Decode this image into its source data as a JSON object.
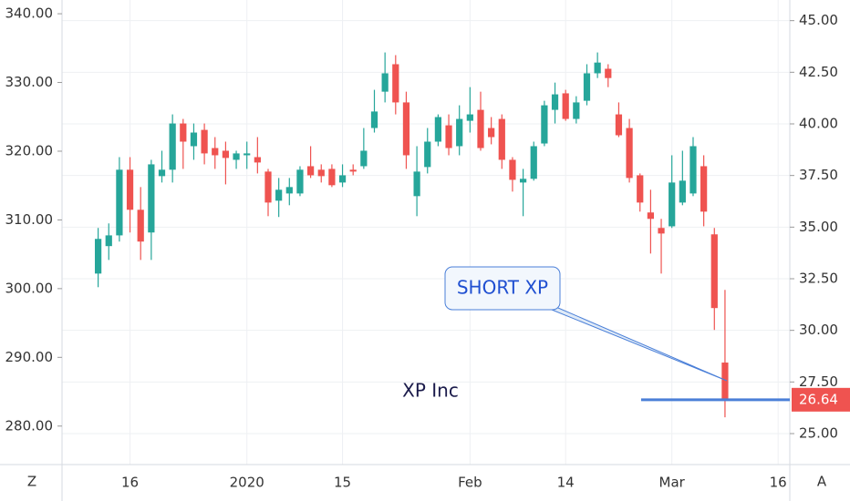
{
  "chart_data": {
    "type": "candlestick",
    "annotations": [
      "SHORT XP",
      "XP Inc"
    ],
    "x": [
      0,
      1,
      2,
      3,
      4,
      5,
      6,
      7,
      8,
      9,
      10,
      11,
      12,
      13,
      14,
      15,
      16,
      17,
      18,
      19,
      20,
      21,
      22,
      23,
      24,
      25,
      26,
      27,
      28,
      29,
      30,
      31,
      32,
      33,
      34,
      35,
      36,
      37,
      38,
      39,
      40,
      41,
      42,
      43,
      44,
      45,
      46,
      47,
      48,
      49,
      50,
      51,
      52,
      53,
      54,
      55,
      56,
      57,
      58,
      59
    ],
    "xlim": [
      -3.4,
      65.1
    ],
    "xticks": [
      {
        "value": 3,
        "label": "16"
      },
      {
        "value": 14,
        "label": "2020"
      },
      {
        "value": 23,
        "label": "15"
      },
      {
        "value": 35,
        "label": "Feb"
      },
      {
        "value": 44,
        "label": "14"
      },
      {
        "value": 54,
        "label": "Mar"
      },
      {
        "value": 64,
        "label": "16"
      }
    ],
    "ylim": [
      274.4,
      342.0
    ],
    "yticks": [
      {
        "value": 280,
        "label": "280.00"
      },
      {
        "value": 290,
        "label": "290.00"
      },
      {
        "value": 300,
        "label": "300.00"
      },
      {
        "value": 310,
        "label": "310.00"
      },
      {
        "value": 320,
        "label": "320.00"
      },
      {
        "value": 330,
        "label": "330.00"
      },
      {
        "value": 340,
        "label": "340.00"
      }
    ],
    "y2lim": [
      23.5,
      46.0
    ],
    "y2ticks": [
      {
        "value": 25,
        "label": "25.00"
      },
      {
        "value": 27.5,
        "label": "27.50"
      },
      {
        "value": 30,
        "label": "30.00"
      },
      {
        "value": 32.5,
        "label": "32.50"
      },
      {
        "value": 35,
        "label": "35.00"
      },
      {
        "value": 37.5,
        "label": "37.50"
      },
      {
        "value": 40,
        "label": "40.00"
      },
      {
        "value": 42.5,
        "label": "42.50"
      },
      {
        "value": 45,
        "label": "45.00"
      }
    ],
    "grid": true,
    "up_color": "#26a69a",
    "down_color": "#ef5350",
    "last_line_color": "#4a7fd8",
    "series": [
      {
        "axis": "y2",
        "open": [
          32.75,
          34.08,
          34.6,
          37.78,
          35.84,
          34.74,
          37.47,
          37.78,
          40.02,
          38.92,
          39.71,
          38.83,
          38.7,
          38.26,
          38.48,
          38.39,
          37.69,
          36.28,
          36.63,
          36.63,
          37.95,
          37.78,
          37.82,
          37.16,
          37.78,
          37.95,
          39.8,
          41.56,
          42.89,
          41.04,
          36.5,
          37.91,
          39.14,
          39.93,
          38.92,
          40.15,
          40.68,
          39.8,
          40.24,
          38.26,
          37.16,
          37.34,
          39.05,
          40.68,
          41.48,
          40.24,
          41.12,
          42.45,
          42.67,
          40.46,
          39.8,
          37.51,
          35.71,
          34.96,
          35.04,
          36.19,
          36.63,
          37.95,
          34.65,
          28.44
        ],
        "high": [
          34.96,
          35.18,
          38.39,
          38.39,
          36.94,
          38.26,
          38.7,
          40.46,
          40.24,
          40.02,
          40.02,
          39.36,
          39.14,
          38.7,
          39.14,
          39.36,
          37.82,
          37.38,
          37.38,
          37.95,
          38.92,
          38.04,
          38.04,
          38.04,
          38.04,
          39.8,
          41.65,
          43.46,
          43.33,
          41.56,
          38.92,
          39.8,
          40.46,
          40.46,
          40.9,
          41.78,
          41.56,
          40.33,
          40.46,
          38.39,
          37.82,
          39.14,
          41.12,
          42.0,
          41.65,
          41.34,
          42.89,
          43.46,
          42.89,
          41.04,
          40.24,
          37.6,
          36.81,
          35.4,
          38.48,
          38.7,
          39.36,
          38.48,
          34.96,
          31.96
        ],
        "low": [
          32.09,
          33.41,
          34.3,
          34.74,
          33.41,
          33.41,
          37.16,
          37.16,
          37.82,
          38.26,
          38.04,
          37.82,
          37.07,
          37.82,
          37.82,
          37.6,
          35.53,
          35.49,
          36.06,
          36.5,
          37.38,
          37.16,
          36.94,
          36.94,
          37.51,
          37.82,
          39.58,
          41.04,
          40.46,
          37.82,
          35.53,
          37.6,
          38.92,
          38.48,
          38.48,
          39.58,
          38.7,
          39.01,
          37.82,
          36.72,
          35.53,
          37.25,
          38.92,
          40.02,
          40.15,
          40.02,
          40.9,
          42.22,
          41.78,
          39.36,
          37.16,
          35.75,
          33.72,
          32.75,
          34.96,
          36.06,
          36.5,
          35.04,
          30.02,
          25.79
        ],
        "close": [
          34.43,
          34.6,
          37.78,
          35.84,
          34.3,
          38.04,
          37.78,
          40.02,
          39.14,
          39.58,
          38.57,
          38.48,
          38.35,
          38.57,
          38.57,
          38.13,
          36.19,
          36.81,
          36.94,
          37.78,
          37.51,
          37.47,
          37.03,
          37.51,
          37.69,
          38.7,
          40.6,
          42.45,
          41.04,
          38.48,
          37.69,
          39.14,
          40.33,
          38.83,
          40.24,
          40.46,
          38.83,
          39.36,
          38.26,
          37.29,
          37.34,
          38.92,
          40.9,
          41.43,
          40.24,
          41.04,
          42.45,
          42.97,
          42.22,
          39.45,
          37.38,
          36.19,
          35.4,
          34.69,
          37.16,
          37.25,
          38.92,
          35.75,
          31.08,
          26.64
        ]
      }
    ]
  },
  "ui": {
    "left_button": "Z",
    "right_button": "A"
  }
}
